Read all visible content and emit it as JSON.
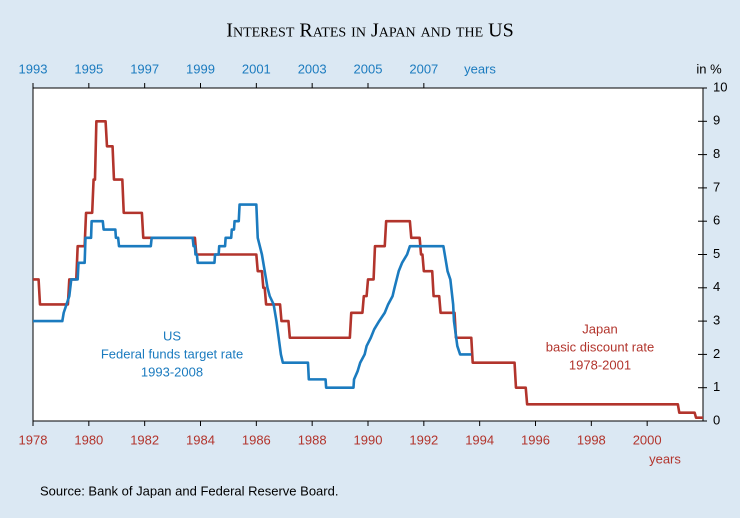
{
  "chart_data": {
    "type": "line",
    "title": "Interest Rates in Japan and the US",
    "y_label": "in %",
    "x_label": "years",
    "x2_label": "years",
    "ylim": [
      0,
      10
    ],
    "yticks": [
      0,
      1,
      2,
      3,
      4,
      5,
      6,
      7,
      8,
      9,
      10
    ],
    "xlim": [
      1978,
      2002
    ],
    "xticks": [
      1978,
      1980,
      1982,
      1984,
      1986,
      1988,
      1990,
      1992,
      1994,
      1996,
      1998,
      2000
    ],
    "x_color": "#b2342c",
    "x2lim": [
      1993,
      2017
    ],
    "x2ticks": [
      1993,
      1995,
      1997,
      1999,
      2001,
      2003,
      2005,
      2007
    ],
    "x2_color": "#1b7bbf",
    "series": [
      {
        "name": "Japan",
        "description": "basic discount rate",
        "period": "1978-2001",
        "color": "#b2342c",
        "axis": "x",
        "x": [
          1978.0,
          1978.2,
          1978.25,
          1979.25,
          1979.3,
          1979.55,
          1979.6,
          1979.85,
          1979.9,
          1980.12,
          1980.17,
          1980.22,
          1980.27,
          1980.6,
          1980.65,
          1980.85,
          1980.9,
          1981.2,
          1981.25,
          1981.9,
          1981.95,
          1983.8,
          1983.85,
          1986.0,
          1986.05,
          1986.2,
          1986.25,
          1986.3,
          1986.35,
          1986.85,
          1986.9,
          1987.15,
          1987.2,
          1989.35,
          1989.4,
          1989.8,
          1989.85,
          1989.95,
          1990.0,
          1990.2,
          1990.25,
          1990.6,
          1990.65,
          1991.5,
          1991.55,
          1991.85,
          1991.9,
          1991.95,
          1992.0,
          1992.3,
          1992.35,
          1992.55,
          1992.6,
          1993.1,
          1993.15,
          1993.7,
          1993.75,
          1995.25,
          1995.3,
          1995.65,
          1995.7,
          2001.1,
          2001.15,
          2001.7,
          2001.75,
          2002.0
        ],
        "values": [
          4.25,
          4.25,
          3.5,
          3.5,
          4.25,
          4.25,
          5.25,
          5.25,
          6.25,
          6.25,
          7.25,
          7.25,
          9,
          9,
          8.25,
          8.25,
          7.25,
          7.25,
          6.25,
          6.25,
          5.5,
          5.5,
          5,
          5,
          4.5,
          4.5,
          4,
          4,
          3.5,
          3.5,
          3,
          3,
          2.5,
          2.5,
          3.25,
          3.25,
          3.75,
          3.75,
          4.25,
          4.25,
          5.25,
          5.25,
          6,
          6,
          5.5,
          5.5,
          5,
          5,
          4.5,
          4.5,
          3.75,
          3.75,
          3.25,
          3.25,
          2.5,
          2.5,
          1.75,
          1.75,
          1,
          1,
          0.5,
          0.5,
          0.25,
          0.25,
          0.1,
          0.1
        ]
      },
      {
        "name": "US",
        "description": "Federal funds target rate",
        "period": "1993-2008",
        "color": "#1b7bbf",
        "axis": "x2",
        "x": [
          1993.0,
          1994.05,
          1994.1,
          1994.2,
          1994.3,
          1994.37,
          1994.6,
          1994.63,
          1994.85,
          1994.88,
          1995.08,
          1995.1,
          1995.5,
          1995.53,
          1995.95,
          1995.97,
          1996.05,
          1996.08,
          1997.22,
          1997.25,
          1998.72,
          1998.75,
          1998.8,
          1998.82,
          1998.87,
          1998.9,
          1999.5,
          1999.52,
          1999.65,
          1999.67,
          1999.88,
          1999.9,
          2000.1,
          2000.12,
          2000.2,
          2000.22,
          2000.37,
          2000.4,
          2001.0,
          2001.05,
          2001.2,
          2001.3,
          2001.4,
          2001.48,
          2001.62,
          2001.72,
          2001.8,
          2001.88,
          2001.95,
          2002.85,
          2002.88,
          2003.48,
          2003.5,
          2004.48,
          2004.5,
          2004.63,
          2004.72,
          2004.88,
          2004.95,
          2005.1,
          2005.22,
          2005.4,
          2005.6,
          2005.72,
          2005.88,
          2005.95,
          2006.1,
          2006.22,
          2006.4,
          2006.5,
          2007.7,
          2007.8,
          2007.85,
          2007.95,
          2008.05,
          2008.08,
          2008.2,
          2008.3,
          2008.7
        ],
        "values": [
          3,
          3,
          3.25,
          3.5,
          3.75,
          4.25,
          4.25,
          4.75,
          4.75,
          5.5,
          5.5,
          6,
          6,
          5.75,
          5.75,
          5.5,
          5.5,
          5.25,
          5.25,
          5.5,
          5.5,
          5.25,
          5.25,
          5,
          5,
          4.75,
          4.75,
          5,
          5,
          5.25,
          5.25,
          5.5,
          5.5,
          5.75,
          5.75,
          6,
          6,
          6.5,
          6.5,
          5.5,
          5,
          4.5,
          4,
          3.75,
          3.5,
          3,
          2.5,
          2,
          1.75,
          1.75,
          1.25,
          1.25,
          1,
          1,
          1.25,
          1.5,
          1.75,
          2,
          2.25,
          2.5,
          2.75,
          3,
          3.25,
          3.5,
          3.75,
          4,
          4.5,
          4.75,
          5,
          5.25,
          5.25,
          4.75,
          4.5,
          4.25,
          3.5,
          3,
          2.25,
          2,
          2
        ]
      }
    ],
    "source": "Source: Bank of Japan and Federal Reserve Board."
  }
}
